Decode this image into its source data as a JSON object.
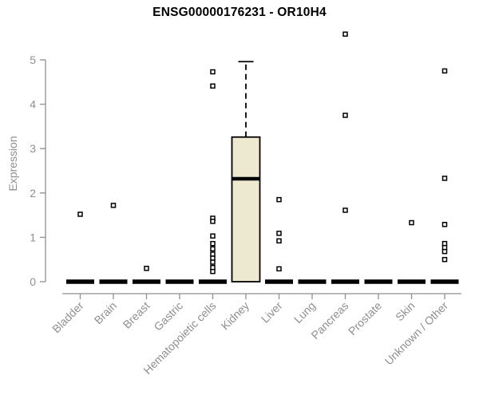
{
  "chart_data": {
    "type": "box",
    "title": "ENSG00000176231 - OR10H4",
    "ylabel": "Expression",
    "xlabel": "",
    "y_axis": {
      "min": 0,
      "max": 5,
      "ticks": [
        0,
        1,
        2,
        3,
        4,
        5
      ]
    },
    "grid": false,
    "legend": false,
    "categories": [
      "Bladder",
      "Brain",
      "Breast",
      "Gastric",
      "Hematopoietic cells",
      "Kidney",
      "Liver",
      "Lung",
      "Pancreas",
      "Prostate",
      "Skin",
      "Unknown / Other"
    ],
    "boxes": [
      {
        "category": "Bladder",
        "q1": 0,
        "median": 0,
        "q3": 0,
        "whisker_low": 0,
        "whisker_high": 0,
        "outliers": [
          1.52
        ]
      },
      {
        "category": "Brain",
        "q1": 0,
        "median": 0,
        "q3": 0,
        "whisker_low": 0,
        "whisker_high": 0,
        "outliers": [
          1.72
        ]
      },
      {
        "category": "Breast",
        "q1": 0,
        "median": 0,
        "q3": 0,
        "whisker_low": 0,
        "whisker_high": 0,
        "outliers": [
          0.3
        ]
      },
      {
        "category": "Gastric",
        "q1": 0,
        "median": 0,
        "q3": 0,
        "whisker_low": 0,
        "whisker_high": 0,
        "outliers": []
      },
      {
        "category": "Hematopoietic cells",
        "q1": 0,
        "median": 0,
        "q3": 0,
        "whisker_low": 0,
        "whisker_high": 0,
        "outliers": [
          4.73,
          4.41,
          1.43,
          1.36,
          1.03,
          0.86,
          0.74,
          0.62,
          0.53,
          0.44,
          0.32,
          0.23
        ]
      },
      {
        "category": "Kidney",
        "q1": 0,
        "median": 2.32,
        "q3": 3.26,
        "whisker_low": 0,
        "whisker_high": 4.96,
        "outliers": []
      },
      {
        "category": "Liver",
        "q1": 0,
        "median": 0,
        "q3": 0,
        "whisker_low": 0,
        "whisker_high": 0,
        "outliers": [
          1.85,
          1.09,
          0.92,
          0.29
        ]
      },
      {
        "category": "Lung",
        "q1": 0,
        "median": 0,
        "q3": 0,
        "whisker_low": 0,
        "whisker_high": 0,
        "outliers": []
      },
      {
        "category": "Pancreas",
        "q1": 0,
        "median": 0,
        "q3": 0,
        "whisker_low": 0,
        "whisker_high": 0,
        "outliers": [
          5.58,
          3.75,
          1.61
        ]
      },
      {
        "category": "Prostate",
        "q1": 0,
        "median": 0,
        "q3": 0,
        "whisker_low": 0,
        "whisker_high": 0,
        "outliers": []
      },
      {
        "category": "Skin",
        "q1": 0,
        "median": 0,
        "q3": 0,
        "whisker_low": 0,
        "whisker_high": 0,
        "outliers": [
          1.33
        ]
      },
      {
        "category": "Unknown / Other",
        "q1": 0,
        "median": 0,
        "q3": 0,
        "whisker_low": 0,
        "whisker_high": 0,
        "outliers": [
          4.75,
          2.33,
          1.29,
          0.86,
          0.77,
          0.68,
          0.5
        ]
      }
    ],
    "colors": {
      "box_fill": "#EDE8CF",
      "box_stroke": "#000000",
      "median": "#000000",
      "outlier_stroke": "#000000",
      "outlier_fill": "#ffffff",
      "axis": "#8f8f8f",
      "title": "#000000",
      "background": "#ffffff"
    }
  }
}
